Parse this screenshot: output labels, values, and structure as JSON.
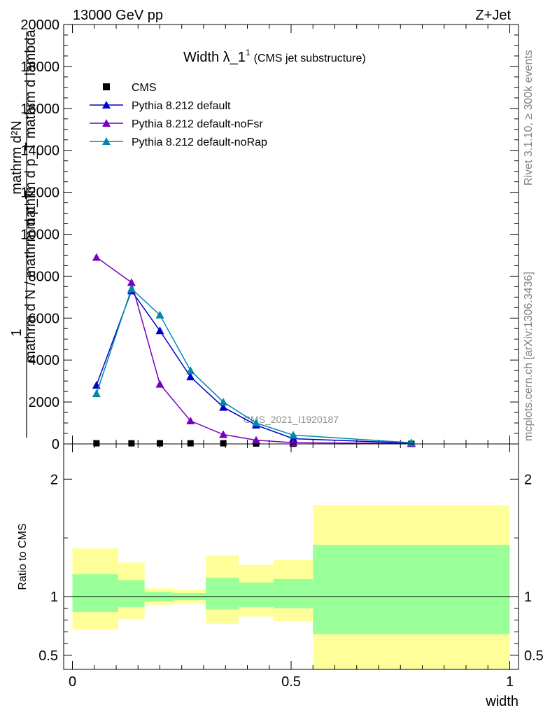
{
  "header": {
    "left": "13000 GeV pp",
    "right": "Z+Jet"
  },
  "side_labels": {
    "rivet": "Rivet 3.1.10, ≥ 300k events",
    "mcplots": "mcplots.cern.ch [arXiv:1306.3436]"
  },
  "watermark": "CMS_2021_I1920187",
  "chart_data": [
    {
      "type": "line",
      "title_main": "Width λ_1",
      "title_sup": "1",
      "title_sub": "(CMS jet substructure)",
      "ylabel_top": "mathrm d²N",
      "ylabel_top_rest": "mathrm d p_T mathrm d lambda",
      "ylabel_bottom": "1",
      "ylabel_bottom_rest": "mathrm d N / mathrm d p_T",
      "ylim": [
        0,
        20000
      ],
      "xlim": [
        -0.02,
        1.02
      ],
      "yticks": [
        {
          "v": 0,
          "label": "0"
        },
        {
          "v": 2000,
          "label": "2000"
        },
        {
          "v": 4000,
          "label": "4000"
        },
        {
          "v": 6000,
          "label": "6000"
        },
        {
          "v": 8000,
          "label": "8000"
        },
        {
          "v": 10000,
          "label": "10000"
        },
        {
          "v": 12000,
          "label": "12000"
        },
        {
          "v": 14000,
          "label": "14000"
        },
        {
          "v": 16000,
          "label": "16000"
        },
        {
          "v": 18000,
          "label": "18000"
        },
        {
          "v": 20000,
          "label": "20000"
        }
      ],
      "legend": [
        {
          "name": "CMS",
          "color": "#000000",
          "marker": "square"
        },
        {
          "name": "Pythia 8.212 default",
          "color": "#0000cc",
          "marker": "triangle"
        },
        {
          "name": "Pythia 8.212 default-noFsr",
          "color": "#7700bb",
          "marker": "triangle"
        },
        {
          "name": "Pythia 8.212 default-noRap",
          "color": "#0088aa",
          "marker": "triangle"
        }
      ],
      "x": [
        0.055,
        0.135,
        0.2,
        0.27,
        0.345,
        0.42,
        0.505,
        0.775
      ],
      "series": [
        {
          "name": "CMS",
          "color": "#000000",
          "marker": "square",
          "line": false,
          "values": [
            30,
            30,
            30,
            30,
            30,
            20,
            10,
            5
          ]
        },
        {
          "name": "Pythia 8.212 default",
          "color": "#0000cc",
          "marker": "triangle",
          "line": true,
          "values": [
            2800,
            7300,
            5400,
            3200,
            1750,
            900,
            250,
            40
          ]
        },
        {
          "name": "Pythia 8.212 default-noFsr",
          "color": "#7700bb",
          "marker": "triangle",
          "line": true,
          "values": [
            8900,
            7700,
            2850,
            1100,
            450,
            180,
            60,
            20
          ]
        },
        {
          "name": "Pythia 8.212 default-noRap",
          "color": "#0088aa",
          "marker": "triangle",
          "line": true,
          "values": [
            2400,
            7400,
            6150,
            3500,
            2000,
            1000,
            420,
            60
          ]
        }
      ]
    },
    {
      "type": "area",
      "ylabel": "Ratio to CMS",
      "xlabel": "width",
      "ylim": [
        0.38,
        2.3
      ],
      "xlim": [
        -0.02,
        1.02
      ],
      "xticks": [
        {
          "v": 0,
          "label": "0"
        },
        {
          "v": 0.5,
          "label": "0.5"
        },
        {
          "v": 1,
          "label": "1"
        }
      ],
      "yticks": [
        {
          "v": 0.5,
          "label": "0.5"
        },
        {
          "v": 1,
          "label": "1"
        },
        {
          "v": 2,
          "label": "2"
        }
      ],
      "bands": [
        {
          "x0": 0.0,
          "x1": 0.105,
          "y2lo": 0.72,
          "y2hi": 1.41,
          "y1lo": 0.87,
          "y1hi": 1.19
        },
        {
          "x0": 0.105,
          "x1": 0.165,
          "y2lo": 0.81,
          "y2hi": 1.29,
          "y1lo": 0.91,
          "y1hi": 1.14
        },
        {
          "x0": 0.165,
          "x1": 0.23,
          "y2lo": 0.93,
          "y2hi": 1.07,
          "y1lo": 0.96,
          "y1hi": 1.04
        },
        {
          "x0": 0.23,
          "x1": 0.305,
          "y2lo": 0.94,
          "y2hi": 1.06,
          "y1lo": 0.97,
          "y1hi": 1.03
        },
        {
          "x0": 0.305,
          "x1": 0.38,
          "y2lo": 0.77,
          "y2hi": 1.35,
          "y1lo": 0.89,
          "y1hi": 1.16
        },
        {
          "x0": 0.38,
          "x1": 0.46,
          "y2lo": 0.83,
          "y2hi": 1.27,
          "y1lo": 0.91,
          "y1hi": 1.12
        },
        {
          "x0": 0.46,
          "x1": 0.55,
          "y2lo": 0.79,
          "y2hi": 1.31,
          "y1lo": 0.9,
          "y1hi": 1.15
        },
        {
          "x0": 0.55,
          "x1": 1.0,
          "y2lo": 0.38,
          "y2hi": 1.78,
          "y1lo": 0.68,
          "y1hi": 1.44
        }
      ],
      "band_colors": {
        "outer": "#ffff99",
        "inner": "#99ff99"
      }
    }
  ]
}
